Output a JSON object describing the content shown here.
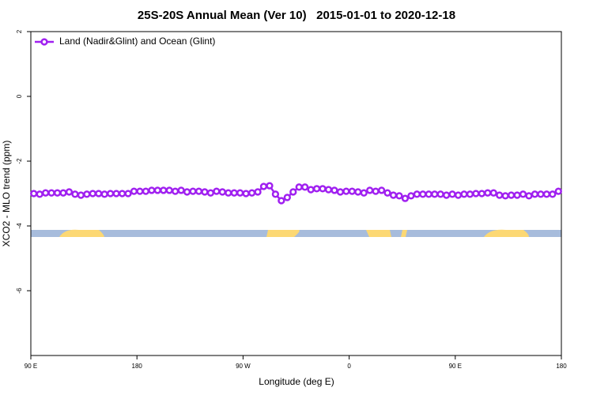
{
  "chart_data": {
    "type": "line",
    "title": "25S-20S Annual Mean (Ver 10)   2015-01-01 to 2020-12-18",
    "x_label": "Longitude (deg E)",
    "y_label": "XCO2 - MLO trend (ppm)",
    "xlim": [
      90,
      540
    ],
    "xticks": [
      {
        "value": 90,
        "label": "90 E"
      },
      {
        "value": 180,
        "label": "180"
      },
      {
        "value": 270,
        "label": "90 W"
      },
      {
        "value": 360,
        "label": "0"
      },
      {
        "value": 450,
        "label": "90 E"
      },
      {
        "value": 540,
        "label": "180"
      }
    ],
    "ylim": [
      -8,
      2
    ],
    "yticks": [
      2,
      0,
      -2,
      -4,
      -6
    ],
    "grid": false,
    "legend": "top-left",
    "x": [
      92.5,
      97.5,
      102.5,
      107.5,
      112.5,
      117.5,
      122.5,
      127.5,
      132.5,
      137.5,
      142.5,
      147.5,
      152.5,
      157.5,
      162.5,
      167.5,
      172.5,
      177.5,
      182.5,
      187.5,
      192.5,
      197.5,
      202.5,
      207.5,
      212.5,
      217.5,
      222.5,
      227.5,
      232.5,
      237.5,
      242.5,
      247.5,
      252.5,
      257.5,
      262.5,
      267.5,
      272.5,
      277.5,
      282.5,
      287.5,
      292.5,
      297.5,
      302.5,
      307.5,
      312.5,
      317.5,
      322.5,
      327.5,
      332.5,
      337.5,
      342.5,
      347.5,
      352.5,
      357.5,
      362.5,
      367.5,
      372.5,
      377.5,
      382.5,
      387.5,
      392.5,
      397.5,
      402.5,
      407.5,
      412.5,
      417.5,
      422.5,
      427.5,
      432.5,
      437.5,
      442.5,
      447.5,
      452.5,
      457.5,
      462.5,
      467.5,
      472.5,
      477.5,
      482.5,
      487.5,
      492.5,
      497.5,
      502.5,
      507.5,
      512.5,
      517.5,
      522.5,
      527.5,
      532.5,
      537.5
    ],
    "series": [
      {
        "name": "Land (Nadir&Glint) and Ocean (Glint)",
        "color": "#a020f0",
        "values": [
          -3.0,
          -3.02,
          -2.98,
          -2.98,
          -2.98,
          -2.98,
          -2.95,
          -3.02,
          -3.05,
          -3.02,
          -3.0,
          -3.0,
          -3.02,
          -3.0,
          -3.0,
          -3.0,
          -3.0,
          -2.93,
          -2.93,
          -2.93,
          -2.9,
          -2.9,
          -2.9,
          -2.9,
          -2.93,
          -2.9,
          -2.95,
          -2.93,
          -2.93,
          -2.95,
          -2.98,
          -2.93,
          -2.95,
          -2.98,
          -2.98,
          -2.98,
          -3.0,
          -2.98,
          -2.95,
          -2.78,
          -2.76,
          -3.02,
          -3.22,
          -3.12,
          -2.95,
          -2.8,
          -2.8,
          -2.88,
          -2.85,
          -2.85,
          -2.88,
          -2.9,
          -2.95,
          -2.93,
          -2.93,
          -2.95,
          -2.98,
          -2.9,
          -2.93,
          -2.9,
          -2.98,
          -3.05,
          -3.07,
          -3.15,
          -3.07,
          -3.02,
          -3.02,
          -3.02,
          -3.02,
          -3.02,
          -3.05,
          -3.02,
          -3.05,
          -3.02,
          -3.02,
          -3.0,
          -3.0,
          -2.98,
          -2.98,
          -3.05,
          -3.07,
          -3.05,
          -3.05,
          -3.02,
          -3.07,
          -3.02,
          -3.02,
          -3.02,
          -3.02,
          -2.93
        ]
      }
    ]
  }
}
